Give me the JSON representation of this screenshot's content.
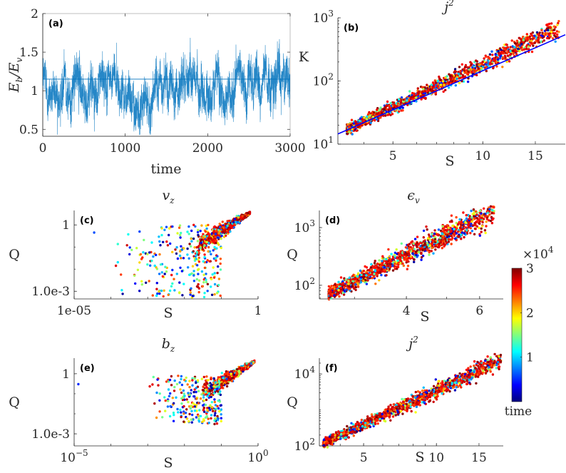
{
  "figure": {
    "colormap": "jet",
    "colorbar": {
      "label": "time",
      "multiplier": "×10",
      "multiplier_exp": "4",
      "ticks": [
        "1",
        "2",
        "3"
      ],
      "range": [
        0,
        30000
      ],
      "tick_values": [
        10000,
        20000,
        30000
      ],
      "colors": [
        "#00007f",
        "#0000ff",
        "#007fff",
        "#00ffff",
        "#7fff7f",
        "#ffff00",
        "#ff7f00",
        "#ff0000",
        "#7f0000"
      ]
    }
  },
  "chart_data": [
    {
      "id": "a",
      "type": "line",
      "tag": "(a)",
      "title": "",
      "xlabel": "time",
      "ylabel": "E_b/E_v",
      "ylabel_parts": {
        "main1": "E",
        "sub1": "b",
        "slash": "/",
        "main2": "E",
        "sub2": "v"
      },
      "xlim": [
        0,
        3000
      ],
      "ylim": [
        0.41,
        2
      ],
      "xticks": [
        0,
        1000,
        2000,
        3000
      ],
      "xtick_labels": [
        "0",
        "1000",
        "2000",
        "3000"
      ],
      "yticks": [
        0.5,
        1,
        1.5,
        2
      ],
      "ytick_labels": [
        "0.5",
        "1",
        "1.5",
        "2"
      ],
      "mean_line": 1.15,
      "series_color": "#0072BD",
      "series_stats": {
        "mean": 1.07,
        "std": 0.17,
        "min": 0.43,
        "max": 1.8,
        "n_points": 3000
      },
      "grid": false,
      "box": true
    },
    {
      "id": "b",
      "type": "scatter",
      "tag": "(b)",
      "title": "j",
      "title_sup": "2",
      "xlabel": "S",
      "ylabel": "K",
      "xscale": "log",
      "yscale": "log",
      "xlim": [
        3.27,
        18.9
      ],
      "ylim": [
        10,
        1000
      ],
      "xticks": [
        5,
        10,
        15
      ],
      "xtick_labels": [
        "5",
        "10",
        "15"
      ],
      "yticks": [
        10,
        100,
        1000
      ],
      "ytick_labels": [
        {
          "base": "10",
          "exp": "1"
        },
        {
          "base": "10",
          "exp": "2"
        },
        {
          "base": "10",
          "exp": "3"
        }
      ],
      "fit_line": {
        "color": "#0000ff",
        "points": [
          [
            3.27,
            14.5
          ],
          [
            18.9,
            540
          ]
        ]
      },
      "cluster": {
        "x_range": [
          3.5,
          18.0
        ],
        "y_at_xmin": 17,
        "y_at_xmax": 700,
        "spread_log": 0.06,
        "n": 1400
      },
      "grid": false
    },
    {
      "id": "c",
      "type": "scatter",
      "tag": "(c)",
      "title": "v",
      "title_sub": "z",
      "xlabel": "S",
      "ylabel": "Q",
      "xscale": "log",
      "yscale": "log",
      "xlim": [
        1e-05,
        1
      ],
      "ylim": [
        0.00045,
        4.5
      ],
      "xticks": [
        1e-05,
        1
      ],
      "xtick_labels": [
        "1e-05",
        "1"
      ],
      "yticks": [
        0.001,
        1
      ],
      "ytick_labels": [
        "1.0e-3",
        "1"
      ],
      "cluster": {
        "core_x": [
          0.02,
          0.6
        ],
        "core_y": [
          0.1,
          3.5
        ],
        "scatter_x": [
          0.0001,
          0.1
        ],
        "scatter_y": [
          0.0005,
          1
        ],
        "n": 1100
      },
      "outliers": [
        [
          3.5e-05,
          0.45
        ],
        [
          0.0006,
          0.02
        ],
        [
          0.0006,
          0.5
        ]
      ],
      "grid": false
    },
    {
      "id": "d",
      "type": "scatter",
      "tag": "(d)",
      "title": "ϵ",
      "title_sub": "v",
      "xlabel": "S",
      "ylabel": "Q",
      "xscale": "log",
      "yscale": "log",
      "xlim": [
        2.47,
        6.84
      ],
      "ylim": [
        58,
        1980
      ],
      "xticks": [
        4,
        6
      ],
      "xtick_labels": [
        "4",
        "6"
      ],
      "yticks": [
        100,
        1000
      ],
      "ytick_labels": [
        {
          "base": "10",
          "exp": "2"
        },
        {
          "base": "10",
          "exp": "3"
        }
      ],
      "cluster": {
        "x_range": [
          2.6,
          6.5
        ],
        "y_at_xmin": 70,
        "y_at_xmax": 1900,
        "spread_log": 0.09,
        "n": 1300
      },
      "grid": false
    },
    {
      "id": "e",
      "type": "scatter",
      "tag": "(e)",
      "title": "b",
      "title_sub": "z",
      "xlabel": "S",
      "ylabel": "Q",
      "xscale": "log",
      "yscale": "log",
      "xlim": [
        1e-05,
        1
      ],
      "ylim": [
        0.00025,
        6
      ],
      "xticks": [
        1e-05,
        1
      ],
      "xtick_labels": [
        {
          "base": "10",
          "exp": "−5"
        },
        {
          "base": "10",
          "exp": "0"
        }
      ],
      "yticks": [
        0.001,
        1
      ],
      "ytick_labels": [
        "1.0e-3",
        "1"
      ],
      "cluster": {
        "core_x": [
          0.03,
          0.8
        ],
        "core_y": [
          0.1,
          4
        ],
        "scatter_x": [
          0.001,
          0.1
        ],
        "scatter_y": [
          0.003,
          0.8
        ],
        "n": 1100
      },
      "outliers": [
        [
          1.3e-05,
          0.3
        ]
      ],
      "grid": false
    },
    {
      "id": "f",
      "type": "scatter",
      "tag": "(f)",
      "title": "j",
      "title_sup": "2",
      "xlabel": "S",
      "ylabel": "Q",
      "xscale": "log",
      "yscale": "log",
      "xlim": [
        3.28,
        18.9
      ],
      "ylim": [
        100,
        27500
      ],
      "xticks": [
        5,
        10,
        15
      ],
      "xtick_labels": [
        "5",
        "10",
        "15"
      ],
      "yticks": [
        100,
        10000
      ],
      "ytick_labels": [
        {
          "base": "10",
          "exp": "2"
        },
        {
          "base": "10",
          "exp": "4"
        }
      ],
      "cluster": {
        "x_range": [
          3.4,
          18.5
        ],
        "y_at_xmin": 115,
        "y_at_xmax": 24000,
        "spread_log": 0.1,
        "n": 1400
      },
      "grid": false
    }
  ]
}
